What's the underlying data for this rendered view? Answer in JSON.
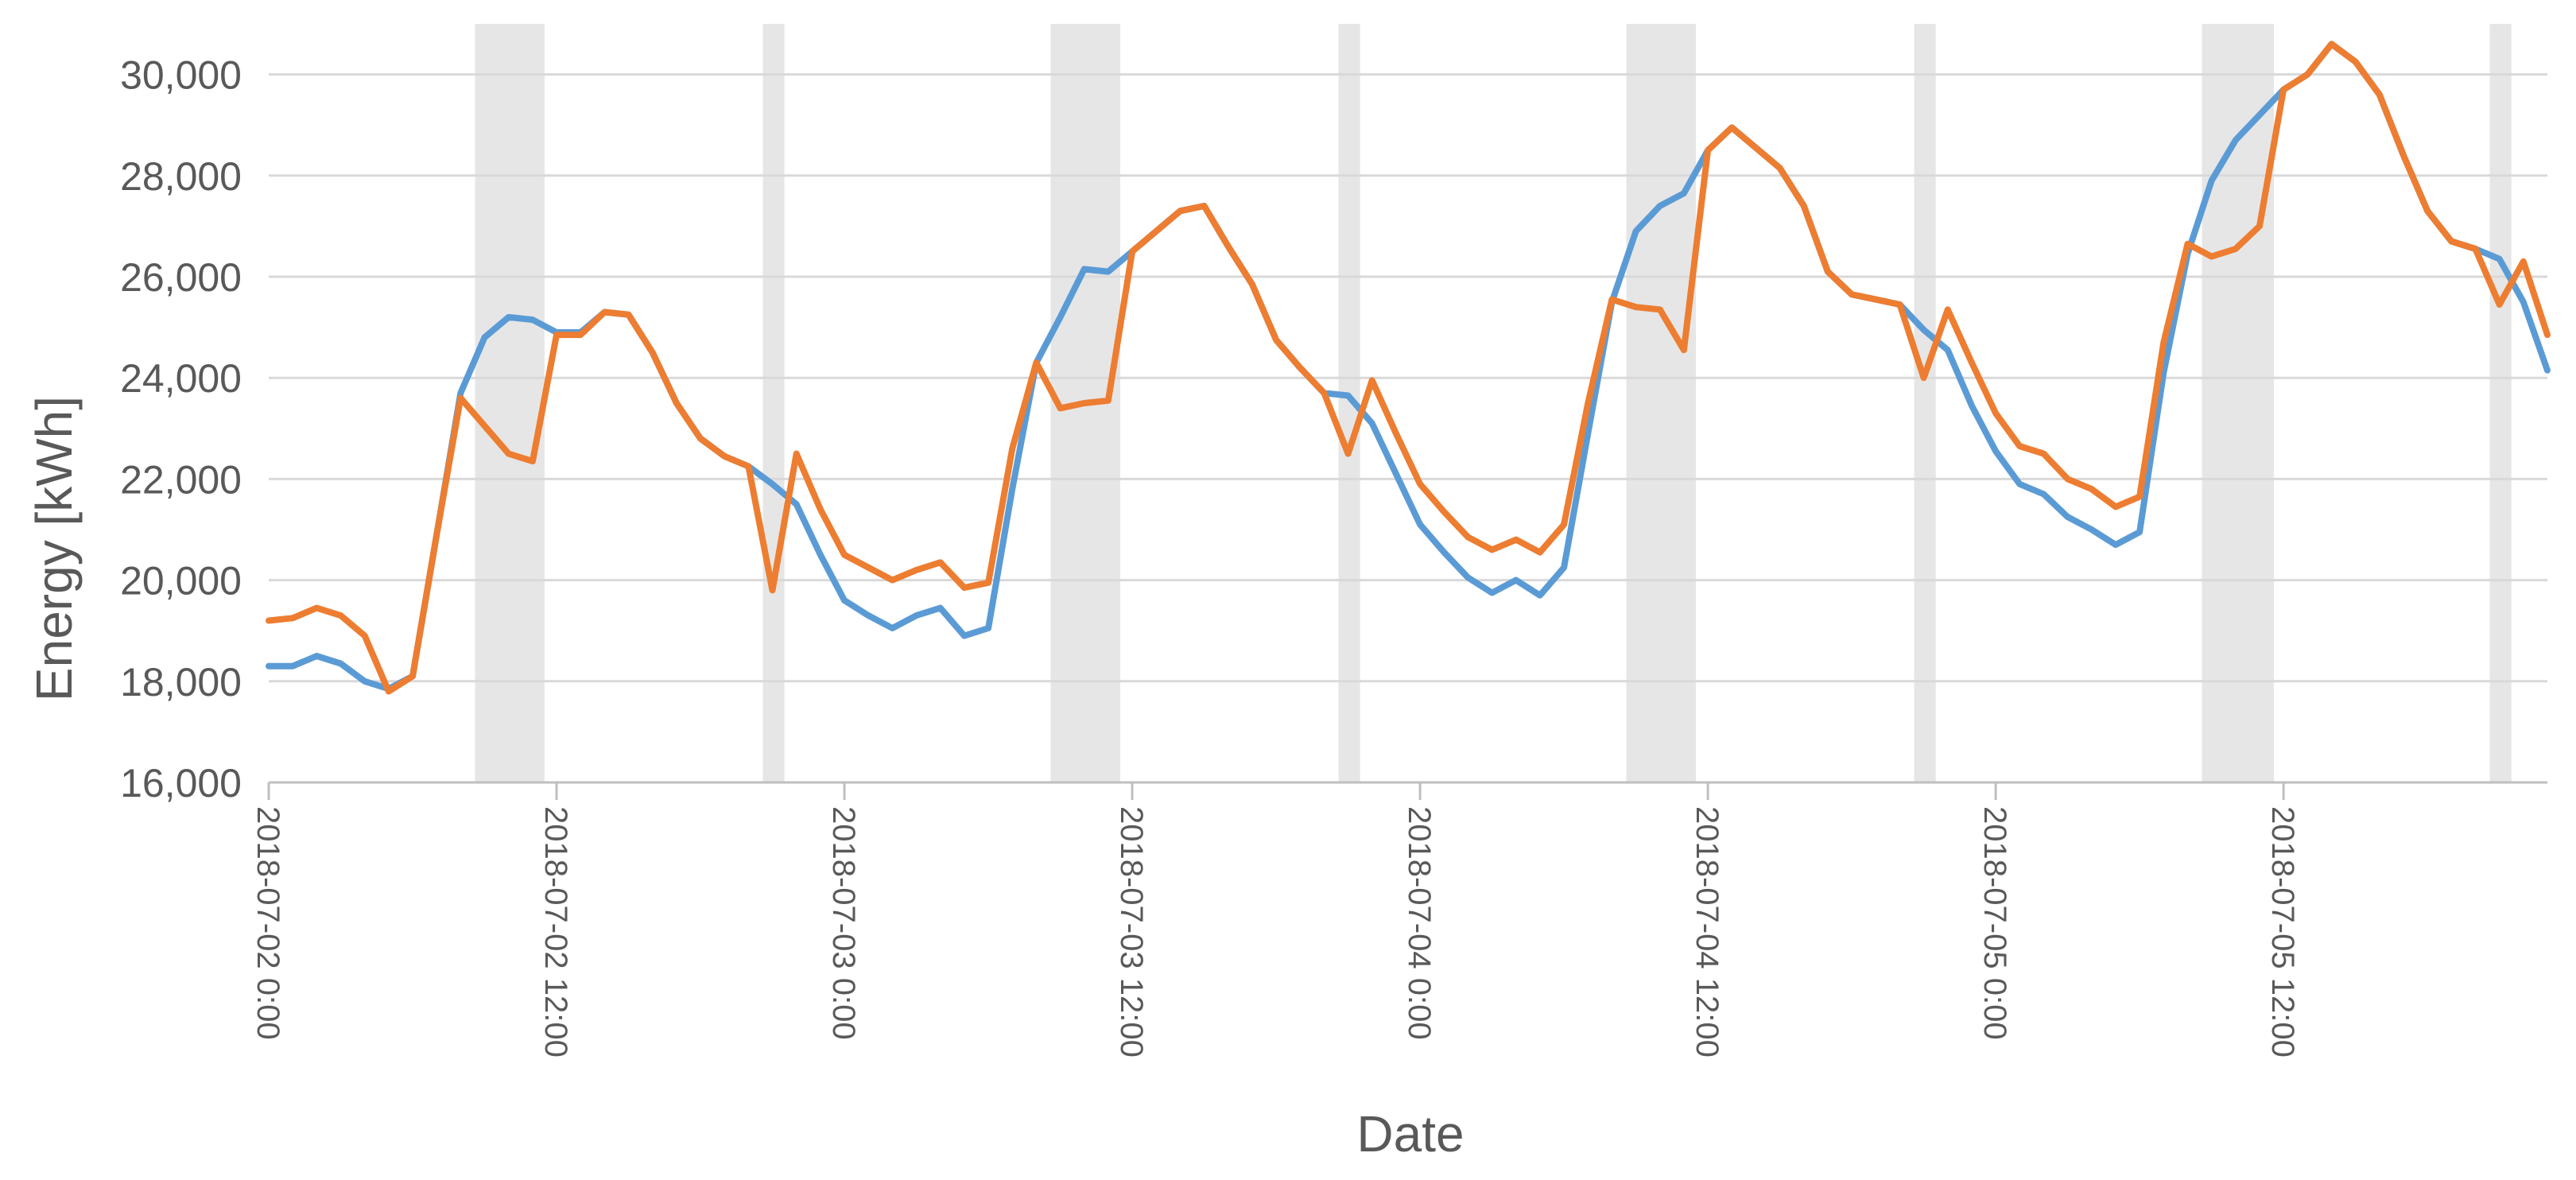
{
  "chart_data": {
    "type": "line",
    "xlabel": "Date",
    "ylabel": "Energy [kWh]",
    "ylim": [
      16000,
      31000
    ],
    "y_ticks": [
      16000,
      18000,
      20000,
      22000,
      24000,
      26000,
      28000,
      30000
    ],
    "y_tick_labels": [
      "16,000",
      "18,000",
      "20,000",
      "22,000",
      "24,000",
      "26,000",
      "28,000",
      "30,000"
    ],
    "x_unit": "hours since 2018-07-02 0:00",
    "x_range": [
      0,
      95
    ],
    "x_ticks": [
      0,
      12,
      24,
      36,
      48,
      60,
      72,
      84
    ],
    "x_tick_labels": [
      "2018-07-02 0:00",
      "2018-07-02 12:00",
      "2018-07-03 0:00",
      "2018-07-03 12:00",
      "2018-07-04 0:00",
      "2018-07-04 12:00",
      "2018-07-05 0:00",
      "2018-07-05 12:00"
    ],
    "grid": true,
    "legend": "none",
    "shaded_intervals": [
      [
        8.6,
        11.5
      ],
      [
        20.6,
        21.5
      ],
      [
        32.6,
        35.5
      ],
      [
        44.6,
        45.5
      ],
      [
        56.6,
        59.5
      ],
      [
        68.6,
        69.5
      ],
      [
        80.6,
        83.6
      ],
      [
        92.6,
        93.5
      ]
    ],
    "series": [
      {
        "color": "#5b9bd5",
        "values": [
          18300,
          18300,
          18500,
          18350,
          18000,
          17850,
          18100,
          20900,
          23700,
          24800,
          25200,
          25150,
          24900,
          24900,
          25300,
          25250,
          24500,
          23500,
          22800,
          22450,
          22250,
          21900,
          21500,
          20500,
          19600,
          19300,
          19050,
          19300,
          19450,
          18900,
          19050,
          21800,
          24300,
          25200,
          26150,
          26100,
          26500,
          26900,
          27300,
          27400,
          26600,
          25850,
          24750,
          24200,
          23700,
          23650,
          23100,
          22100,
          21100,
          20550,
          20050,
          19750,
          20000,
          19700,
          20250,
          22900,
          25500,
          26900,
          27400,
          27650,
          28500,
          28950,
          28550,
          28150,
          27400,
          26100,
          25650,
          25550,
          25450,
          24950,
          24550,
          23450,
          22550,
          21900,
          21700,
          21250,
          21000,
          20700,
          20950,
          24100,
          26450,
          27900,
          28700,
          29200,
          29700,
          30000,
          30600,
          30250,
          29600,
          28400,
          27300,
          26700,
          26550,
          26350,
          25500,
          24150
        ]
      },
      {
        "color": "#ed7d31",
        "values": [
          19200,
          19250,
          19450,
          19300,
          18900,
          17800,
          18100,
          20900,
          23600,
          23050,
          22500,
          22350,
          24850,
          24850,
          25300,
          25250,
          24500,
          23500,
          22800,
          22450,
          22250,
          19800,
          22500,
          21400,
          20500,
          20250,
          20000,
          20200,
          20350,
          19850,
          19950,
          22600,
          24300,
          23400,
          23500,
          23550,
          26500,
          26900,
          27300,
          27400,
          26600,
          25850,
          24750,
          24200,
          23700,
          22500,
          23950,
          22900,
          21900,
          21350,
          20850,
          20600,
          20800,
          20550,
          21100,
          23500,
          25550,
          25400,
          25350,
          24550,
          28500,
          28950,
          28550,
          28150,
          27400,
          26100,
          25650,
          25550,
          25450,
          24000,
          25350,
          24300,
          23300,
          22650,
          22500,
          22000,
          21800,
          21450,
          21650,
          24700,
          26650,
          26400,
          26550,
          27000,
          29700,
          30000,
          30600,
          30250,
          29600,
          28400,
          27300,
          26700,
          26550,
          25450,
          26300,
          24850
        ]
      }
    ]
  }
}
